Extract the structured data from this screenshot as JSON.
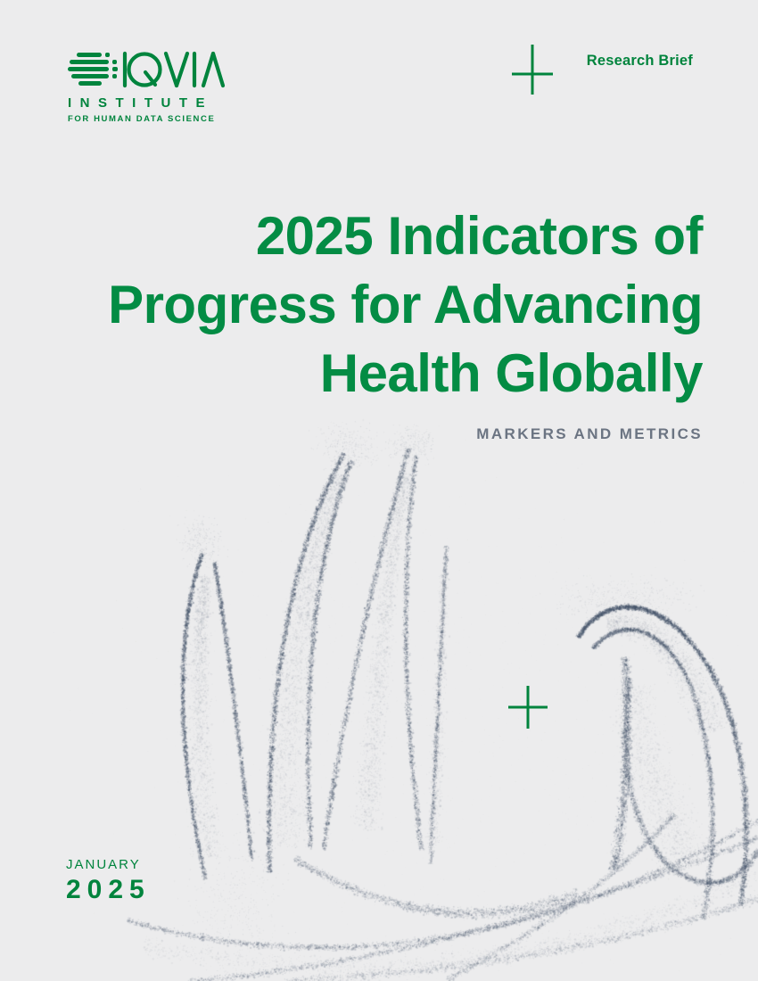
{
  "page": {
    "background": "#ececed"
  },
  "colors": {
    "brand_green": "#00843D",
    "title_green": "#038C44",
    "subtitle_gray": "#6B7482",
    "art_dot": "#445369"
  },
  "logo": {
    "name": "IQVIA",
    "institute": "INSTITUTE",
    "tagline": "FOR HUMAN DATA SCIENCE"
  },
  "header": {
    "badge": "Research Brief"
  },
  "title": {
    "lines": [
      "2025 Indicators of",
      "Progress for Advancing",
      "Health Globally"
    ]
  },
  "subtitle": "MARKERS AND METRICS",
  "footer": {
    "month": "JANUARY",
    "year": "2025"
  }
}
